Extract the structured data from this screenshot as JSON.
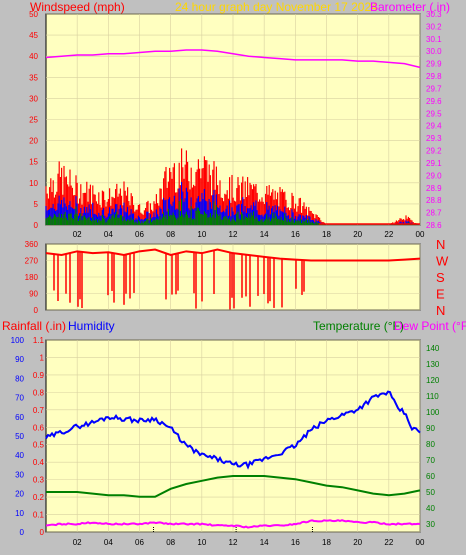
{
  "header": {
    "left_label": "Windspeed (mph)",
    "center_label": "24 hour graph day   November 17 2024",
    "right_label": "Barometer (.in)"
  },
  "lower_header": {
    "rainfall_label": "Rainfall (.in)",
    "humidity_label": "Humidity",
    "temperature_label": "Temperature (°F)",
    "dewpoint_label": "Dew Point (°F)"
  },
  "compass": [
    "N",
    "W",
    "S",
    "E",
    "N"
  ],
  "colors": {
    "plot_bg": "#ffffc0",
    "frame_bg": "#c0c0c0",
    "wind_gust": "#ff0000",
    "wind_avg": "#0000ff",
    "wind_low": "#008000",
    "barometer": "#ff00ff",
    "direction": "#ff0000",
    "humidity": "#0000ff",
    "temperature": "#008000",
    "dewpoint": "#ff00ff",
    "rain": "#000000"
  },
  "chart_data": [
    {
      "type": "line",
      "name": "wind-barometer",
      "x_ticks": [
        "02",
        "04",
        "06",
        "08",
        "10",
        "12",
        "14",
        "16",
        "18",
        "20",
        "22",
        "00"
      ],
      "xlim": [
        0,
        24
      ],
      "y_left_ticks": [
        0,
        5,
        10,
        15,
        20,
        25,
        30,
        35,
        40,
        45,
        50
      ],
      "y_left_lim": [
        0,
        50
      ],
      "y_right_ticks": [
        28.6,
        28.7,
        28.8,
        28.9,
        29.0,
        29.1,
        29.2,
        29.3,
        29.4,
        29.5,
        29.6,
        29.7,
        29.8,
        29.9,
        30.0,
        30.1,
        30.2,
        30.3
      ],
      "y_right_lim": [
        28.6,
        30.3
      ],
      "series": [
        {
          "name": "Windspeed (mph)",
          "x": [
            0,
            1,
            2,
            3,
            4,
            5,
            6,
            7,
            8,
            9,
            10,
            11,
            12,
            13,
            14,
            15,
            16,
            17,
            17.5,
            18,
            20,
            22,
            23,
            24
          ],
          "values": [
            10,
            12,
            9,
            8,
            7,
            8,
            4,
            5,
            14,
            14,
            15,
            11,
            9,
            9,
            8,
            7,
            6,
            3,
            2,
            0,
            0,
            0,
            2,
            0
          ]
        },
        {
          "name": "Barometer (.in)",
          "x": [
            0,
            1,
            2,
            3,
            4,
            5,
            6,
            7,
            8,
            9,
            10,
            11,
            12,
            13,
            14,
            15,
            16,
            17,
            18,
            19,
            20,
            21,
            22,
            23,
            24
          ],
          "values": [
            29.95,
            29.96,
            29.97,
            29.97,
            29.98,
            29.98,
            29.99,
            30.0,
            30.0,
            30.01,
            30.01,
            30.0,
            29.98,
            29.96,
            29.95,
            29.94,
            29.93,
            29.93,
            29.93,
            29.93,
            29.92,
            29.92,
            29.91,
            29.9,
            29.87
          ]
        }
      ]
    },
    {
      "type": "line",
      "name": "wind-direction",
      "x_ticks": [
        "02",
        "04",
        "06",
        "08",
        "10",
        "12",
        "14",
        "16",
        "18",
        "20",
        "22",
        "00"
      ],
      "xlim": [
        0,
        24
      ],
      "y_ticks": [
        0,
        90,
        180,
        270,
        360
      ],
      "ylim": [
        0,
        360
      ],
      "series": [
        {
          "name": "Wind direction",
          "x": [
            0,
            1,
            2,
            3,
            4,
            5,
            6,
            7,
            8,
            9,
            10,
            11,
            12,
            13,
            14,
            15,
            16,
            17,
            18,
            19,
            20,
            21,
            22,
            23,
            24
          ],
          "values": [
            310,
            300,
            320,
            310,
            315,
            300,
            320,
            330,
            300,
            320,
            310,
            330,
            310,
            300,
            290,
            280,
            275,
            270,
            270,
            270,
            270,
            270,
            270,
            275,
            280
          ]
        }
      ]
    },
    {
      "type": "line",
      "name": "rain-humidity-temperature",
      "x_ticks": [
        "02",
        "04",
        "06",
        "08",
        "10",
        "12",
        "14",
        "16",
        "18",
        "20",
        "22",
        "00"
      ],
      "xlim": [
        0,
        24
      ],
      "y_humidity_ticks": [
        0,
        10,
        20,
        30,
        40,
        50,
        60,
        70,
        80,
        90,
        100
      ],
      "y_rain_ticks": [
        0,
        0.1,
        0.2,
        0.3,
        0.4,
        0.5,
        0.6,
        0.7,
        0.8,
        0.9,
        1,
        1.1
      ],
      "y_rain_lim": [
        0,
        1.1
      ],
      "y_temp_ticks": [
        30,
        40,
        50,
        60,
        70,
        80,
        90,
        100,
        110,
        120,
        130,
        140
      ],
      "y_temp_lim": [
        25,
        145
      ],
      "series": [
        {
          "name": "Humidity",
          "x": [
            0,
            1,
            2,
            3,
            4,
            5,
            6,
            7,
            8,
            9,
            10,
            11,
            12,
            13,
            14,
            15,
            16,
            17,
            18,
            19,
            20,
            21,
            22,
            22.5,
            23,
            23.5,
            24
          ],
          "values": [
            49,
            52,
            55,
            57,
            60,
            59,
            58,
            59,
            54,
            45,
            40,
            38,
            35,
            35,
            38,
            41,
            45,
            53,
            58,
            61,
            64,
            70,
            73,
            65,
            62,
            54,
            52
          ]
        },
        {
          "name": "Temperature (°F)",
          "x": [
            0,
            1,
            2,
            3,
            4,
            5,
            6,
            7,
            8,
            9,
            10,
            11,
            12,
            13,
            14,
            15,
            16,
            17,
            18,
            19,
            20,
            21,
            22,
            23,
            24
          ],
          "values": [
            50,
            50,
            50,
            49,
            48,
            48,
            47,
            47,
            52,
            55,
            57,
            59,
            60,
            60,
            60,
            59,
            58,
            56,
            54,
            53,
            51,
            49,
            48,
            49,
            51
          ]
        },
        {
          "name": "Dew Point (°F)",
          "x": [
            0,
            1,
            2,
            3,
            4,
            5,
            6,
            7,
            8,
            9,
            10,
            11,
            12,
            13,
            14,
            15,
            16,
            17,
            18,
            19,
            20,
            21,
            22,
            23,
            24
          ],
          "values": [
            29,
            30,
            30,
            31,
            30,
            30,
            30,
            31,
            30,
            30,
            30,
            29,
            29,
            28,
            29,
            29,
            30,
            32,
            32,
            32,
            31,
            31,
            30,
            30,
            30
          ]
        },
        {
          "name": "Rainfall (.in)",
          "x": [
            6.9,
            12.2,
            17.1
          ],
          "values": [
            0.03,
            0.03,
            0.03
          ]
        }
      ]
    }
  ]
}
